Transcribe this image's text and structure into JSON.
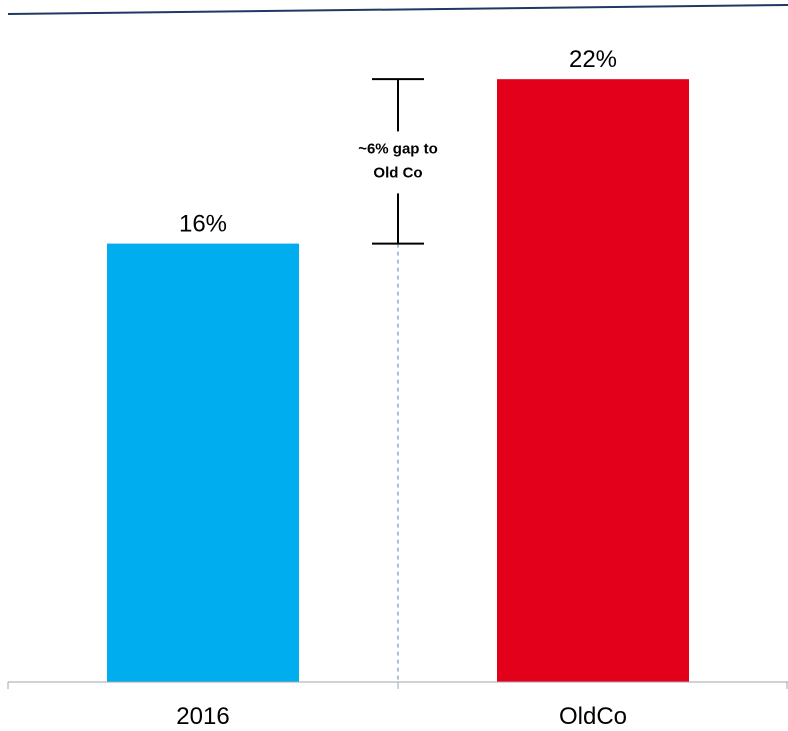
{
  "chart_data": {
    "type": "bar",
    "categories": [
      "2016",
      "OldCo"
    ],
    "values": [
      16,
      22
    ],
    "value_labels": [
      "16%",
      "22%"
    ],
    "title": "",
    "xlabel": "",
    "ylabel": "",
    "ylim": [
      0,
      22.7
    ],
    "grid": false,
    "legend": "none",
    "colors": [
      "#00aeef",
      "#e2001a"
    ],
    "annotation": {
      "text_lines": [
        "~6% gap to",
        "Old Co"
      ],
      "from_value": 16,
      "to_value": 22
    }
  },
  "colors": {
    "top_rule": "#1f3864",
    "axis": "#a6a6a6",
    "dashed_guide": "#4a86c5",
    "bracket": "#000000"
  }
}
